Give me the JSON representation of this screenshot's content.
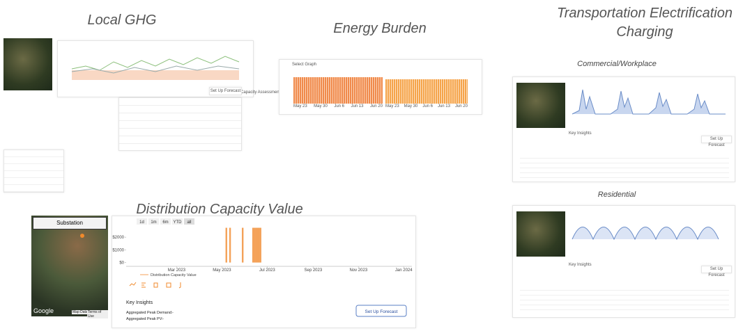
{
  "sections": {
    "local_ghg": {
      "title": "Local GHG",
      "label": "Capacity Assessment",
      "button": "Set Up Forecast"
    },
    "energy_burden": {
      "title": "Energy Burden",
      "select_label": "Select Graph",
      "x_labels": [
        "May 23",
        "May 30",
        "Jun 6",
        "Jun 13",
        "Jun 20"
      ]
    },
    "transportation": {
      "title": "Transportation Electrification Charging",
      "commercial": "Commercial/Workplace",
      "residential": "Residential",
      "button": "Set Up Forecast",
      "insights": "Key Insights"
    },
    "distribution": {
      "title": "Distribution Capacity Value",
      "map": {
        "label": "Substation",
        "brand": "Google",
        "links": [
          "Map Data",
          "Terms of Use"
        ]
      },
      "range_buttons": [
        "1d",
        "1m",
        "6m",
        "YTD",
        "all"
      ],
      "chart": {
        "type": "bar",
        "color": "#f4a259",
        "ylim": [
          -300,
          3000
        ],
        "yticks": [
          {
            "value": 0,
            "label": "$0"
          },
          {
            "value": 1000,
            "label": "$1000"
          },
          {
            "value": 2000,
            "label": "$2000"
          }
        ],
        "xlim": [
          "2022-12-23",
          "2024-01-12"
        ],
        "xticks": [
          {
            "value": "2023-03-01",
            "label": "Mar 2023"
          },
          {
            "value": "2023-05-01",
            "label": "May 2023"
          },
          {
            "value": "2023-07-01",
            "label": "Jul 2023"
          },
          {
            "value": "2023-09-01",
            "label": "Sep 2023"
          },
          {
            "value": "2023-11-01",
            "label": "Nov 2023"
          },
          {
            "value": "2024-01-01",
            "label": "Jan 2024"
          }
        ],
        "series": [
          {
            "name": "Distribution Capacity Value",
            "color": "#f4a259",
            "x": [
              "2023-05-07",
              "2023-05-12",
              "2023-05-29",
              "2023-06-12",
              "2023-06-14",
              "2023-06-16",
              "2023-06-18",
              "2023-06-20",
              "2023-06-22"
            ],
            "values": [
              2750,
              2750,
              2750,
              2750,
              2750,
              2750,
              2750,
              2750,
              2750
            ]
          }
        ]
      },
      "key_insights": {
        "title": "Key Insights",
        "rows": [
          {
            "label": "Aggregated Peak Demand:",
            "value": "-"
          },
          {
            "label": "Aggregated Peak PV:",
            "value": "-"
          }
        ]
      },
      "button": "Set Up Forecast"
    }
  }
}
